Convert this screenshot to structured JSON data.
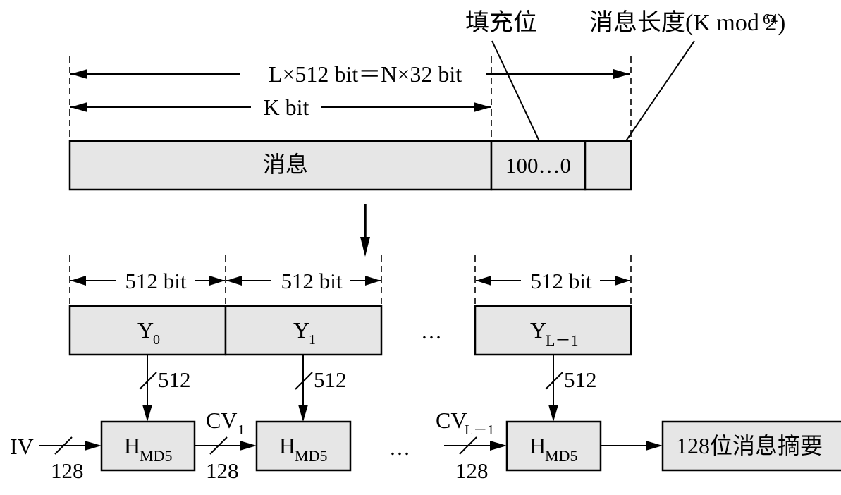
{
  "top": {
    "label_padding": "填充位",
    "label_length_main": "消息长度(K mod 2",
    "label_length_exp": "64",
    "label_length_close": ")",
    "dim_total": "L×512 bit＝N×32 bit",
    "dim_k": "K bit",
    "message": "消息",
    "padding_value": "100…0"
  },
  "blocks": {
    "dim_512": "512 bit",
    "y0_base": "Y",
    "y0_sub": "0",
    "y1_base": "Y",
    "y1_sub": "1",
    "yl_base": "Y",
    "yl_sub": "L－1",
    "ellipsis": "…"
  },
  "processing": {
    "width_512": "512",
    "width_128": "128",
    "iv": "IV",
    "h_base": "H",
    "h_sub": "MD5",
    "cv1_base": "CV",
    "cv1_sub": "1",
    "cvl_base": "CV",
    "cvl_sub": "L－1",
    "ellipsis": "…",
    "digest": "128位消息摘要"
  }
}
